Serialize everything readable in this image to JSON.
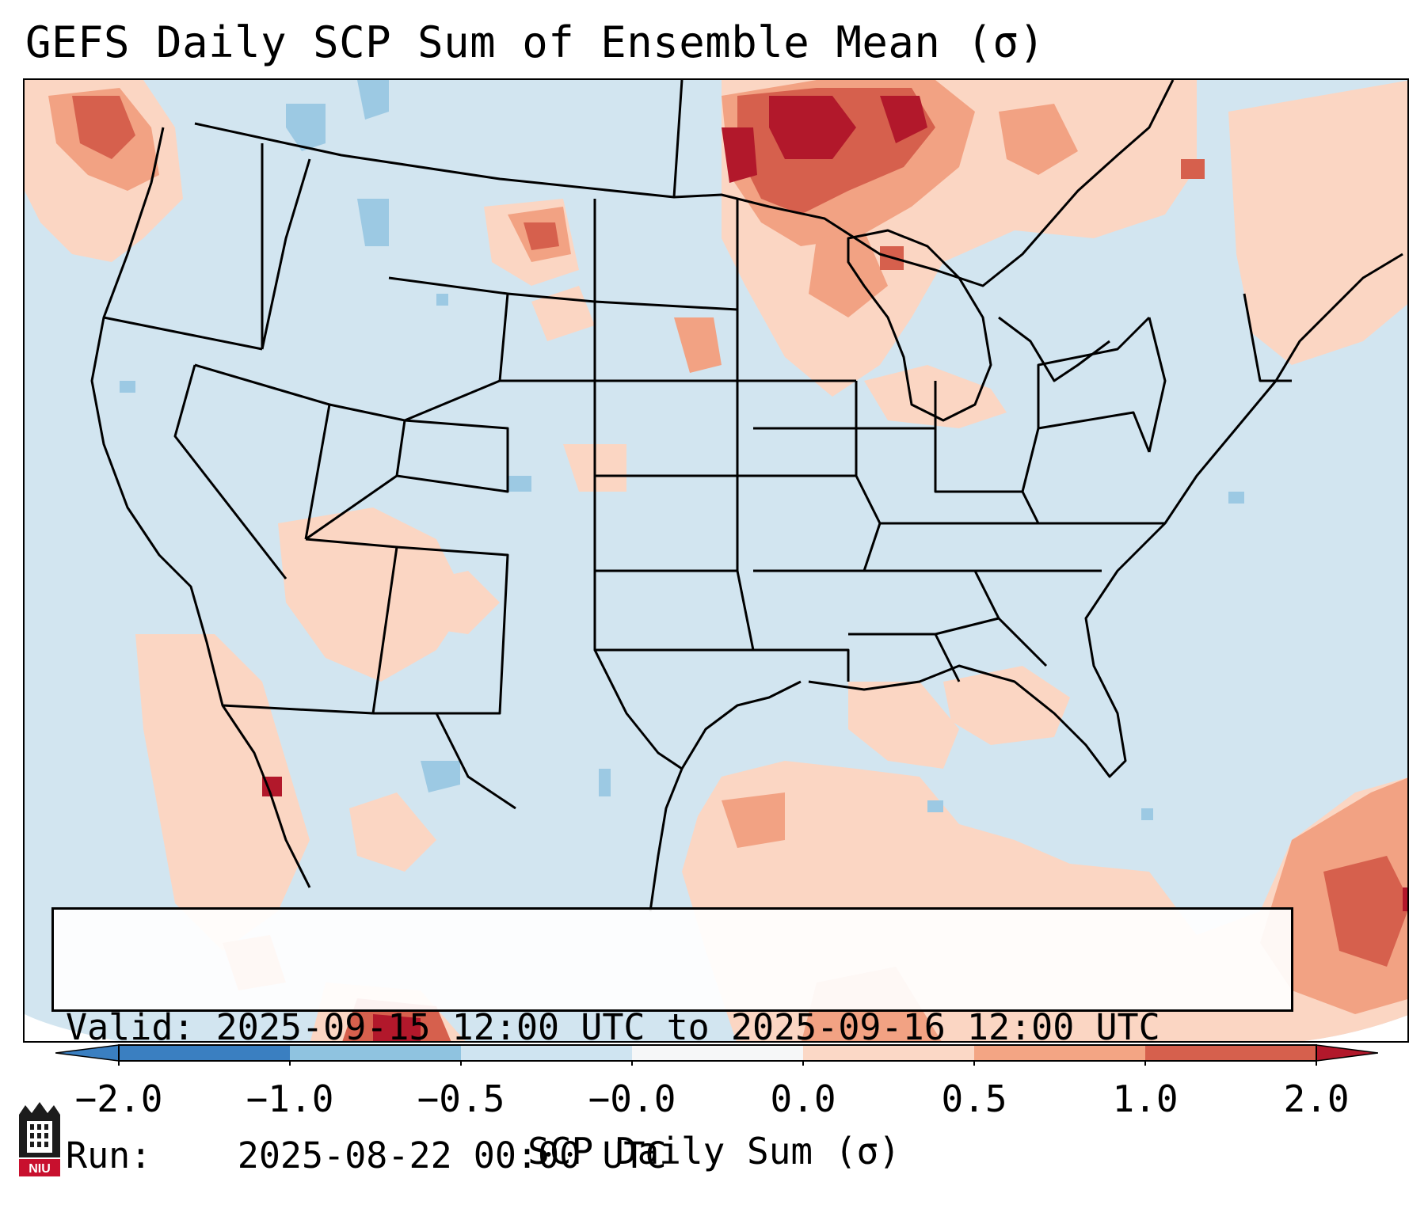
{
  "title": "GEFS Daily SCP Sum of Ensemble Mean (σ)",
  "info": {
    "valid_label": "Valid:",
    "valid_value": "2025-09-15 12:00 UTC to 2025-09-16 12:00 UTC",
    "run_label": "Run:",
    "run_value": "2025-08-22 00:00 UTC"
  },
  "colorbar": {
    "label": "SCP Daily Sum (σ)",
    "ticks": [
      "−2.0",
      "−1.0",
      "−0.5",
      "−0.0",
      "0.0",
      "0.5",
      "1.0",
      "2.0"
    ],
    "colors": [
      "#3a7fc1",
      "#8fc3e0",
      "#cfe4f1",
      "#f6f7f8",
      "#fbd8c6",
      "#f3a584",
      "#d6604d",
      "#b2182b"
    ]
  },
  "logo": {
    "text": "NIU"
  },
  "map_colors": {
    "background": "#d2e5f0",
    "light_red": "#fbd6c3",
    "mid_red": "#f2a283",
    "strong_red": "#d6604d",
    "dark_red": "#b2182b",
    "light_blue": "#9cc9e3"
  }
}
